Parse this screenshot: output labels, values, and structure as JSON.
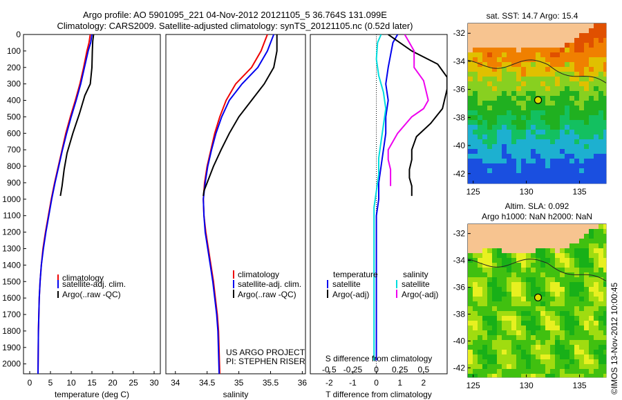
{
  "header": {
    "line1": "Argo profile: AO 5901095_221 04-Nov-2012 20121105_5 36.764S 131.099E",
    "line2": "Climatology: CARS2009. Satellite-adjusted climatology: synTS_20121105.nc (0.52d later)"
  },
  "chart_data": [
    {
      "type": "line",
      "panel": "temperature",
      "xlabel": "temperature (deg C)",
      "ylabel": "",
      "xlim": [
        -1.5,
        31.5
      ],
      "ylim": [
        2060,
        0
      ],
      "xticks": [
        0,
        5,
        10,
        15,
        20,
        25,
        30
      ],
      "yticks": [
        0,
        100,
        200,
        300,
        400,
        500,
        600,
        700,
        800,
        900,
        1000,
        1100,
        1200,
        1300,
        1400,
        1500,
        1600,
        1700,
        1800,
        1900,
        2000
      ],
      "legend": [
        "climatology",
        "satellite-adj. clim.",
        "Argo(..raw -QC)"
      ],
      "legend_position": "lower-middle",
      "series": [
        {
          "name": "climatology",
          "color": "#ee0000",
          "x": [
            14.6,
            14.3,
            13.8,
            13.0,
            12.1,
            11.0,
            9.8,
            8.7,
            7.8,
            6.9,
            6.0,
            5.2,
            4.5,
            3.8,
            3.2,
            2.8,
            2.5,
            2.3,
            2.2,
            2.1,
            2.0
          ],
          "y": [
            0,
            50,
            100,
            200,
            300,
            400,
            500,
            600,
            700,
            800,
            900,
            1000,
            1100,
            1200,
            1300,
            1400,
            1500,
            1600,
            1700,
            1800,
            2060
          ]
        },
        {
          "name": "satellite-adj. clim.",
          "color": "#0000ee",
          "x": [
            15.0,
            14.7,
            14.1,
            13.2,
            12.3,
            11.2,
            10.0,
            8.9,
            7.9,
            7.0,
            6.1,
            5.3,
            4.6,
            3.9,
            3.3,
            2.8,
            2.5,
            2.3,
            2.2,
            2.1,
            2.0
          ],
          "y": [
            0,
            50,
            100,
            200,
            300,
            400,
            500,
            600,
            700,
            800,
            900,
            1000,
            1100,
            1200,
            1300,
            1400,
            1500,
            1600,
            1700,
            1800,
            2060
          ]
        },
        {
          "name": "Argo(..raw -QC)",
          "color": "#000000",
          "x": [
            15.4,
            15.2,
            15.1,
            15.0,
            14.6,
            13.3,
            12.0,
            10.4,
            9.0,
            8.3,
            7.8,
            7.4
          ],
          "y": [
            0,
            40,
            100,
            200,
            300,
            370,
            480,
            600,
            720,
            820,
            920,
            980
          ]
        }
      ]
    },
    {
      "type": "line",
      "panel": "salinity",
      "xlabel": "salinity",
      "xlim": [
        33.85,
        36.05
      ],
      "ylim": [
        2060,
        0
      ],
      "xticks": [
        34,
        34.5,
        35,
        35.5,
        36
      ],
      "legend": [
        "climatology",
        "satellite-adj. clim.",
        "Argo(..raw -QC)"
      ],
      "legend_position": "lower-middle",
      "annotation": [
        "US ARGO PROJECT",
        "PI: STEPHEN RISER"
      ],
      "series": [
        {
          "name": "climatology",
          "color": "#ee0000",
          "x": [
            35.45,
            35.4,
            35.35,
            35.2,
            34.95,
            34.8,
            34.7,
            34.62,
            34.56,
            34.5,
            34.46,
            34.44,
            34.45,
            34.48,
            34.52,
            34.56,
            34.6,
            34.63,
            34.66,
            34.68,
            34.7
          ],
          "y": [
            0,
            50,
            100,
            200,
            300,
            400,
            500,
            600,
            700,
            800,
            900,
            1000,
            1100,
            1200,
            1300,
            1400,
            1500,
            1600,
            1700,
            1800,
            2060
          ]
        },
        {
          "name": "satellite-adj. clim.",
          "color": "#0000ee",
          "x": [
            35.55,
            35.5,
            35.45,
            35.3,
            35.05,
            34.85,
            34.73,
            34.64,
            34.57,
            34.51,
            34.47,
            34.44,
            34.45,
            34.47,
            34.51,
            34.55,
            34.59,
            34.62,
            34.65,
            34.67,
            34.69
          ],
          "y": [
            0,
            50,
            100,
            200,
            300,
            400,
            500,
            600,
            700,
            800,
            900,
            1000,
            1100,
            1200,
            1300,
            1400,
            1500,
            1600,
            1700,
            1800,
            2060
          ]
        },
        {
          "name": "Argo(..raw -QC)",
          "color": "#000000",
          "x": [
            35.6,
            35.6,
            35.55,
            35.4,
            35.2,
            35.0,
            34.85,
            34.72,
            34.6,
            34.5,
            34.45,
            34.44
          ],
          "y": [
            0,
            100,
            200,
            300,
            400,
            500,
            600,
            700,
            800,
            900,
            950,
            980
          ]
        }
      ]
    },
    {
      "type": "line",
      "panel": "difference",
      "xlabel": "T difference from climatology",
      "xlabel_top": "S difference from climatology",
      "xlim": [
        -2.8,
        3.0
      ],
      "ylim": [
        2060,
        0
      ],
      "xticks": [
        -2,
        -1,
        0,
        1,
        2
      ],
      "xtick_labels": [
        "-2",
        "-1",
        "0",
        "1",
        "2"
      ],
      "s_ticks": [
        "-0.5",
        "-0.25",
        "0",
        "0.25",
        "0.5"
      ],
      "legend_left_title": "temperature",
      "legend_right_title": "salinity",
      "legend": [
        "satellite",
        "Argo(-adj)",
        "satellite",
        "Argo(-adj)"
      ],
      "series": [
        {
          "name": "satellite",
          "color": "#0000ee",
          "x": [
            0.9,
            0.7,
            0.5,
            0.4,
            0.5,
            0.4,
            0.4,
            0.3,
            0.2,
            0.1,
            0.1,
            0.0,
            0.0,
            0.0,
            0.0,
            0.0,
            0.0,
            0.0,
            0.0,
            0.0
          ],
          "y": [
            0,
            50,
            200,
            300,
            400,
            500,
            600,
            700,
            800,
            900,
            1000,
            1100,
            1200,
            1300,
            1400,
            1500,
            1600,
            1700,
            1800,
            1980
          ]
        },
        {
          "name": "Argo(-adj)",
          "color": "#000000",
          "x": [
            0.5,
            0.8,
            1.5,
            2.6,
            3.0,
            3.0,
            2.8,
            2.3,
            1.7,
            1.5,
            1.5,
            1.4,
            1.4,
            1.5,
            1.5,
            1.5
          ],
          "y": [
            0,
            30,
            100,
            180,
            260,
            330,
            450,
            540,
            620,
            700,
            760,
            820,
            870,
            920,
            960,
            980
          ]
        },
        {
          "name": "satellite",
          "color": "#00dddd",
          "x": [
            0.2,
            0.05,
            0.0,
            0.1,
            0.3,
            0.4,
            0.3,
            0.2,
            0.1,
            0.1,
            0.0,
            -0.1,
            -0.1,
            -0.1,
            -0.1,
            -0.1,
            -0.1,
            -0.1,
            -0.1,
            -0.1
          ],
          "y": [
            0,
            50,
            150,
            250,
            350,
            450,
            550,
            650,
            750,
            850,
            950,
            1050,
            1150,
            1300,
            1400,
            1500,
            1600,
            1700,
            1800,
            1980
          ]
        },
        {
          "name": "Argo(-adj)",
          "color": "#ee00ee",
          "x": [
            1.2,
            1.4,
            1.6,
            1.6,
            2.0,
            2.2,
            2.0,
            1.5,
            0.9,
            0.5,
            0.5,
            0.6,
            0.6,
            0.6
          ],
          "y": [
            0,
            50,
            100,
            200,
            280,
            400,
            450,
            500,
            600,
            700,
            760,
            820,
            870,
            920
          ]
        }
      ]
    }
  ],
  "maps": [
    {
      "title": "sat. SST: 14.7 Argo: 15.4",
      "kind": "sst",
      "xticks": [
        "125",
        "130",
        "135"
      ],
      "yticks": [
        "-32",
        "-34",
        "-36",
        "-38",
        "-40",
        "-42"
      ],
      "xlim": [
        124.5,
        137.5
      ],
      "ylim": [
        -42.7,
        -31.3
      ],
      "marker": {
        "lon": 131.1,
        "lat": -36.76
      }
    },
    {
      "title_line1": "Altim. SLA: 0.092",
      "title_line2": "Argo h1000: NaN h2000: NaN",
      "kind": "sla",
      "xticks": [
        "125",
        "130",
        "135"
      ],
      "yticks": [
        "-32",
        "-34",
        "-36",
        "-38",
        "-40",
        "-42"
      ],
      "xlim": [
        124.5,
        137.5
      ],
      "ylim": [
        -42.7,
        -31.3
      ],
      "marker": {
        "lon": 131.1,
        "lat": -36.76
      }
    }
  ],
  "footer_stamp": "©IMOS 13-Nov-2012 10:00:45",
  "colors": {
    "land": "#f7c490",
    "climatology": "#ee0000",
    "satellite_adj": "#0000ee",
    "argo": "#000000",
    "salinity_sat": "#00dddd",
    "salinity_argo": "#ee00ee"
  }
}
